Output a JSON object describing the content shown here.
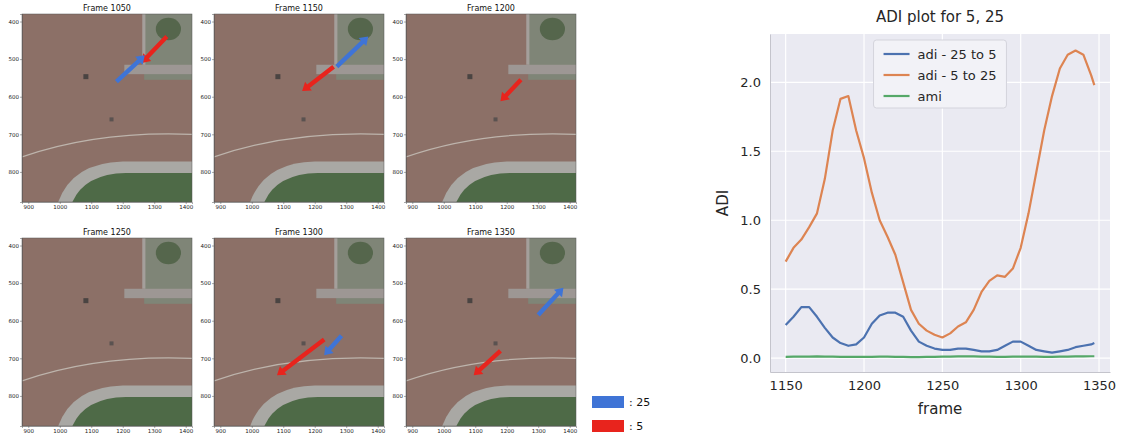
{
  "chart_data": {
    "type": "line",
    "title": "ADI plot for 5, 25",
    "x_label": "frame",
    "y_label": "ADI",
    "x": [
      1150,
      1155,
      1160,
      1165,
      1170,
      1175,
      1180,
      1185,
      1190,
      1195,
      1200,
      1205,
      1210,
      1215,
      1220,
      1225,
      1230,
      1235,
      1240,
      1245,
      1250,
      1255,
      1260,
      1265,
      1270,
      1275,
      1280,
      1285,
      1290,
      1295,
      1300,
      1305,
      1310,
      1315,
      1320,
      1325,
      1330,
      1335,
      1340,
      1345,
      1347
    ],
    "series": [
      {
        "name": "adi - 25 to 5",
        "color": "#4c72b0",
        "values": [
          0.24,
          0.3,
          0.37,
          0.37,
          0.3,
          0.22,
          0.15,
          0.11,
          0.09,
          0.1,
          0.15,
          0.25,
          0.31,
          0.33,
          0.33,
          0.3,
          0.2,
          0.12,
          0.09,
          0.07,
          0.06,
          0.06,
          0.07,
          0.07,
          0.06,
          0.05,
          0.05,
          0.06,
          0.09,
          0.12,
          0.12,
          0.09,
          0.06,
          0.05,
          0.04,
          0.05,
          0.06,
          0.08,
          0.09,
          0.1,
          0.11
        ]
      },
      {
        "name": "adi - 5 to 25",
        "color": "#dd8452",
        "values": [
          0.7,
          0.8,
          0.86,
          0.95,
          1.05,
          1.3,
          1.65,
          1.88,
          1.9,
          1.65,
          1.45,
          1.2,
          1.0,
          0.88,
          0.75,
          0.55,
          0.35,
          0.25,
          0.2,
          0.17,
          0.15,
          0.18,
          0.23,
          0.26,
          0.35,
          0.48,
          0.56,
          0.6,
          0.59,
          0.65,
          0.8,
          1.05,
          1.35,
          1.65,
          1.9,
          2.1,
          2.2,
          2.23,
          2.2,
          2.05,
          1.98
        ]
      },
      {
        "name": "ami",
        "color": "#55a868",
        "values": [
          0.01,
          0.011,
          0.012,
          0.012,
          0.013,
          0.012,
          0.011,
          0.01,
          0.01,
          0.009,
          0.009,
          0.01,
          0.011,
          0.011,
          0.01,
          0.009,
          0.008,
          0.008,
          0.009,
          0.01,
          0.011,
          0.012,
          0.013,
          0.014,
          0.013,
          0.012,
          0.011,
          0.01,
          0.01,
          0.011,
          0.012,
          0.012,
          0.011,
          0.01,
          0.01,
          0.011,
          0.012,
          0.013,
          0.013,
          0.014,
          0.014
        ]
      }
    ],
    "xlim": [
      1140,
      1357
    ],
    "xticks": [
      1150,
      1200,
      1250,
      1300,
      1350
    ],
    "ylim": [
      -0.1,
      2.35
    ],
    "yticks": [
      {
        "value": 0,
        "label": "0.0"
      },
      0.5,
      {
        "value": 1,
        "label": "1.0"
      },
      1.5,
      {
        "value": 2,
        "label": "2.0"
      }
    ],
    "grid": true,
    "legend": "upper center"
  },
  "frames": {
    "panels": [
      {
        "title": "Frame 1050"
      },
      {
        "title": "Frame 1150"
      },
      {
        "title": "Frame 1200"
      },
      {
        "title": "Frame 1250"
      },
      {
        "title": "Frame 1300"
      },
      {
        "title": "Frame 1350"
      }
    ],
    "xlim": [
      880,
      1420
    ],
    "xticks": [
      900,
      1000,
      1100,
      1200,
      1300,
      1400
    ],
    "ylim": [
      880,
      380
    ],
    "yticks": [
      400,
      500,
      600,
      700,
      800
    ]
  },
  "arrow_legend": [
    {
      "label": ": 25",
      "color": "#3f74d6"
    },
    {
      "label": ": 5",
      "color": "#e8241d"
    }
  ]
}
